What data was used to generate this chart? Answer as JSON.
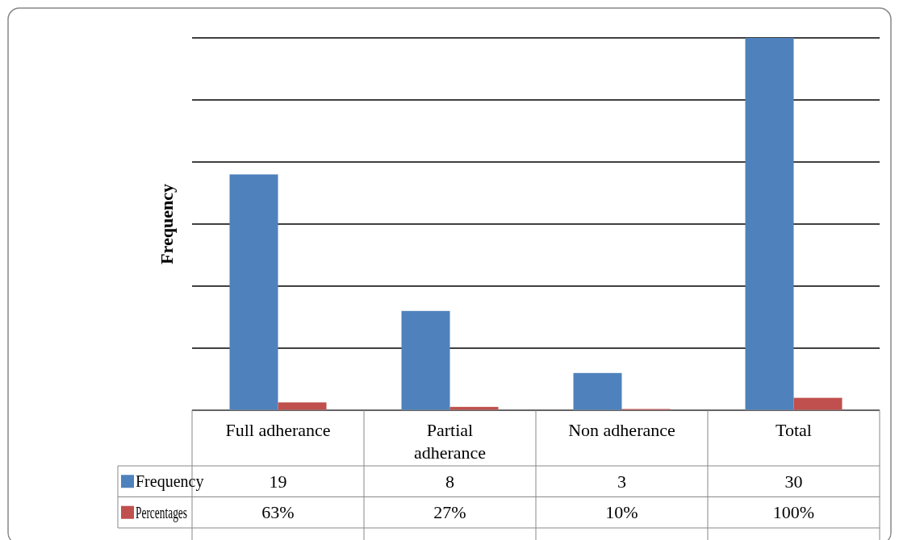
{
  "chart_data": {
    "type": "bar",
    "ylabel": "Frequency",
    "categories": [
      "Full adherance",
      "Partial adherance",
      "Non adherance",
      "Total"
    ],
    "series": [
      {
        "name": "Frequency",
        "color": "#4f81bd",
        "values": [
          19,
          8,
          3,
          30
        ],
        "value_labels": [
          "19",
          "8",
          "3",
          "30"
        ]
      },
      {
        "name": "Percentages",
        "color": "#c0504d",
        "values": [
          0.63,
          0.27,
          0.1,
          1
        ],
        "value_labels": [
          "63%",
          "27%",
          "10%",
          "100%"
        ]
      }
    ],
    "ylim": [
      0,
      30
    ],
    "yticks": [
      {
        "value": 0,
        "label": null
      },
      {
        "value": 5,
        "label": null
      },
      {
        "value": 10,
        "label": null
      },
      {
        "value": 15,
        "label": null
      },
      {
        "value": 20,
        "label": null
      },
      {
        "value": 25,
        "label": null
      },
      {
        "value": 30,
        "label": null
      }
    ],
    "grid": "y",
    "legend": "bottom",
    "tick_labels": "x"
  }
}
